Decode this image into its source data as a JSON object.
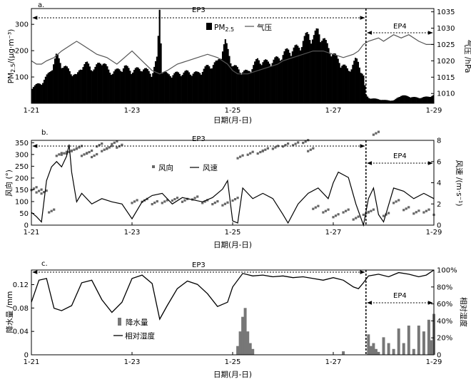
{
  "figure": {
    "x_ticks": [
      "1-21",
      "1-23",
      "1-25",
      "1-27",
      "1-29"
    ],
    "x_label": "日期(月-日)"
  },
  "chart_data": [
    {
      "type": "bar",
      "panel": "a.",
      "episodes": [
        "EP3",
        "EP4"
      ],
      "divider_day": 27.65,
      "x_range_days": [
        21,
        29
      ],
      "ylabel": "PM2.5/(μg·m⁻³)",
      "ylabel_main": "PM",
      "ylabel_sub": "2.5",
      "ylabel_rest": "/(μg·m⁻³)",
      "y2label": "气压 /hPa",
      "ylim": [
        0,
        360
      ],
      "yticks": [
        "100",
        "200",
        "300"
      ],
      "y2lim": [
        1007,
        1036
      ],
      "y2ticks": [
        "1010",
        "1015",
        "1020",
        "1025",
        "1030",
        "1035"
      ],
      "legend": {
        "bar": "PM",
        "bar_sub": "2.5",
        "line": "气压"
      },
      "series": [
        {
          "name": "PM2.5",
          "x": [
            21.0,
            21.2,
            21.35,
            21.5,
            21.6,
            21.75,
            21.9,
            22.0,
            22.1,
            22.25,
            22.4,
            22.55,
            22.7,
            22.85,
            23.0,
            23.2,
            23.4,
            23.5,
            23.55,
            23.6,
            23.7,
            23.9,
            24.1,
            24.3,
            24.5,
            24.7,
            24.85,
            25.0,
            25.15,
            25.3,
            25.5,
            25.7,
            25.9,
            26.1,
            26.3,
            26.5,
            26.6,
            26.7,
            26.85,
            27.0,
            27.1,
            27.2,
            27.3,
            27.45,
            27.5,
            27.6,
            27.65,
            27.7,
            27.9,
            28.0,
            28.2,
            28.35,
            28.5,
            28.7,
            28.9,
            29.0
          ],
          "values": [
            60,
            75,
            110,
            175,
            145,
            120,
            100,
            140,
            145,
            125,
            160,
            115,
            120,
            135,
            120,
            130,
            110,
            165,
            350,
            120,
            105,
            110,
            115,
            110,
            135,
            150,
            225,
            140,
            120,
            115,
            160,
            150,
            165,
            195,
            205,
            255,
            240,
            270,
            220,
            180,
            160,
            140,
            120,
            160,
            150,
            100,
            30,
            20,
            15,
            12,
            10,
            30,
            25,
            20,
            25,
            30
          ]
        },
        {
          "name": "气压",
          "x": [
            21.0,
            21.1,
            21.2,
            21.3,
            21.45,
            21.6,
            21.8,
            21.9,
            22.0,
            22.1,
            22.3,
            22.5,
            22.7,
            22.85,
            23.0,
            23.2,
            23.4,
            23.55,
            23.7,
            23.9,
            24.1,
            24.3,
            24.5,
            24.7,
            24.9,
            25.0,
            25.1,
            25.3,
            25.5,
            25.7,
            25.9,
            26.0,
            26.2,
            26.4,
            26.6,
            26.8,
            27.0,
            27.2,
            27.4,
            27.5,
            27.6,
            27.7,
            27.9,
            28.0,
            28.2,
            28.35,
            28.5,
            28.7,
            28.85,
            29.0
          ],
          "values": [
            1020,
            1019,
            1019,
            1020,
            1021,
            1023,
            1025,
            1026,
            1025,
            1024,
            1022,
            1021,
            1019,
            1021,
            1023,
            1020,
            1017,
            1016,
            1017,
            1019,
            1020,
            1021,
            1022,
            1021,
            1019,
            1017,
            1016,
            1016,
            1017,
            1018,
            1019,
            1020,
            1021,
            1022,
            1023,
            1023,
            1022,
            1021,
            1022,
            1023,
            1025,
            1026,
            1027,
            1026,
            1028,
            1027,
            1028,
            1026,
            1025,
            1025
          ]
        }
      ]
    },
    {
      "type": "scatter",
      "panel": "b.",
      "episodes": [
        "EP3",
        "EP4"
      ],
      "divider_day": 27.65,
      "x_range_days": [
        21,
        29
      ],
      "ylabel": "风向 (°)",
      "y2label": "风速 /(m·s⁻¹)",
      "ylim": [
        0,
        360
      ],
      "yticks": [
        "0",
        "50",
        "100",
        "150",
        "200",
        "250",
        "300",
        "350"
      ],
      "y2lim": [
        0,
        8
      ],
      "y2ticks": [
        "0",
        "2",
        "4",
        "6",
        "8"
      ],
      "legend": {
        "points": "风向",
        "line": "风速"
      },
      "series": [
        {
          "name": "风向",
          "x": [
            21.0,
            21.1,
            21.2,
            21.35,
            21.5,
            21.6,
            21.7,
            21.8,
            21.9,
            22.0,
            22.1,
            22.2,
            22.3,
            22.4,
            22.5,
            22.6,
            22.7,
            23.0,
            23.2,
            23.4,
            23.6,
            23.8,
            24.0,
            24.2,
            24.4,
            24.6,
            24.8,
            25.0,
            25.1,
            25.3,
            25.5,
            25.6,
            25.8,
            26.0,
            26.2,
            26.4,
            26.5,
            26.6,
            26.8,
            27.0,
            27.2,
            27.4,
            27.6,
            27.7,
            27.8,
            28.0,
            28.2,
            28.4,
            28.6,
            28.8,
            29.0
          ],
          "values": [
            155,
            145,
            140,
            60,
            300,
            305,
            310,
            320,
            330,
            300,
            310,
            295,
            340,
            320,
            330,
            350,
            335,
            100,
            105,
            95,
            100,
            110,
            105,
            115,
            100,
            95,
            90,
            110,
            290,
            305,
            310,
            320,
            330,
            340,
            345,
            355,
            320,
            75,
            60,
            40,
            60,
            30,
            50,
            60,
            390,
            45,
            100,
            70,
            55,
            60,
            50
          ]
        },
        {
          "name": "风速",
          "x": [
            21.0,
            21.1,
            21.2,
            21.3,
            21.4,
            21.5,
            21.6,
            21.7,
            21.75,
            21.8,
            21.9,
            22.0,
            22.2,
            22.4,
            22.6,
            22.8,
            23.0,
            23.2,
            23.4,
            23.6,
            23.8,
            24.0,
            24.2,
            24.4,
            24.6,
            24.8,
            24.9,
            25.0,
            25.1,
            25.2,
            25.4,
            25.6,
            25.8,
            26.0,
            26.1,
            26.3,
            26.5,
            26.7,
            26.9,
            27.0,
            27.1,
            27.3,
            27.45,
            27.6,
            27.7,
            27.8,
            27.9,
            28.0,
            28.2,
            28.4,
            28.6,
            28.8,
            29.0
          ],
          "values": [
            1.2,
            0.8,
            0.3,
            4.2,
            5.5,
            6.0,
            5.5,
            6.5,
            7.6,
            5.0,
            2.2,
            3.0,
            2.0,
            2.5,
            2.2,
            2.0,
            0.6,
            2.2,
            2.8,
            3.0,
            2.0,
            2.6,
            2.4,
            2.2,
            2.6,
            3.4,
            4.2,
            0.4,
            0.2,
            3.5,
            2.5,
            3.0,
            2.5,
            1.0,
            0.2,
            2.0,
            3.0,
            3.5,
            2.5,
            4.0,
            5.0,
            4.5,
            2.0,
            0.0,
            2.5,
            3.5,
            1.0,
            0.3,
            3.5,
            3.2,
            2.5,
            3.0,
            2.5
          ]
        }
      ]
    },
    {
      "type": "bar",
      "panel": "c.",
      "episodes": [
        "EP3",
        "EP4"
      ],
      "divider_day": 27.65,
      "x_range_days": [
        21,
        29
      ],
      "ylabel": "降水量 /mm",
      "y2label": "相对湿度",
      "ylim": [
        0,
        0.145
      ],
      "yticks": [
        "0",
        "0.04",
        "0.08",
        "0.12"
      ],
      "y2lim": [
        0,
        100
      ],
      "y2ticks": [
        "0",
        "20%",
        "40%",
        "60%",
        "80%",
        "100%"
      ],
      "legend": {
        "bar": "降水量",
        "line": "相对湿度"
      },
      "series": [
        {
          "name": "降水量",
          "x": [
            25.1,
            25.15,
            25.2,
            25.25,
            25.3,
            25.35,
            25.4,
            27.2,
            27.7,
            27.75,
            27.8,
            27.85,
            27.9,
            28.0,
            28.1,
            28.2,
            28.3,
            28.4,
            28.5,
            28.6,
            28.7,
            28.8,
            28.9,
            28.95,
            29.0
          ],
          "values": [
            0.015,
            0.04,
            0.065,
            0.08,
            0.04,
            0.02,
            0.01,
            0.006,
            0.035,
            0.015,
            0.02,
            0.01,
            0.005,
            0.03,
            0.02,
            0.01,
            0.045,
            0.02,
            0.05,
            0.01,
            0.05,
            0.04,
            0.06,
            0.025,
            0.07
          ]
        },
        {
          "name": "相对湿度",
          "x": [
            21.0,
            21.15,
            21.3,
            21.45,
            21.6,
            21.8,
            22.0,
            22.2,
            22.4,
            22.6,
            22.8,
            23.0,
            23.2,
            23.4,
            23.55,
            23.7,
            23.9,
            24.1,
            24.3,
            24.5,
            24.7,
            24.9,
            25.0,
            25.2,
            25.4,
            25.6,
            25.8,
            26.0,
            26.2,
            26.4,
            26.6,
            26.8,
            27.0,
            27.2,
            27.4,
            27.5,
            27.6,
            27.7,
            27.9,
            28.1,
            28.3,
            28.5,
            28.7,
            28.85,
            29.0
          ],
          "values": [
            62,
            88,
            90,
            55,
            52,
            58,
            85,
            88,
            65,
            50,
            62,
            90,
            94,
            84,
            42,
            58,
            78,
            87,
            83,
            72,
            57,
            62,
            80,
            96,
            93,
            94,
            92,
            93,
            91,
            92,
            90,
            88,
            91,
            88,
            80,
            78,
            85,
            93,
            95,
            92,
            97,
            95,
            92,
            94,
            100
          ]
        }
      ]
    }
  ]
}
